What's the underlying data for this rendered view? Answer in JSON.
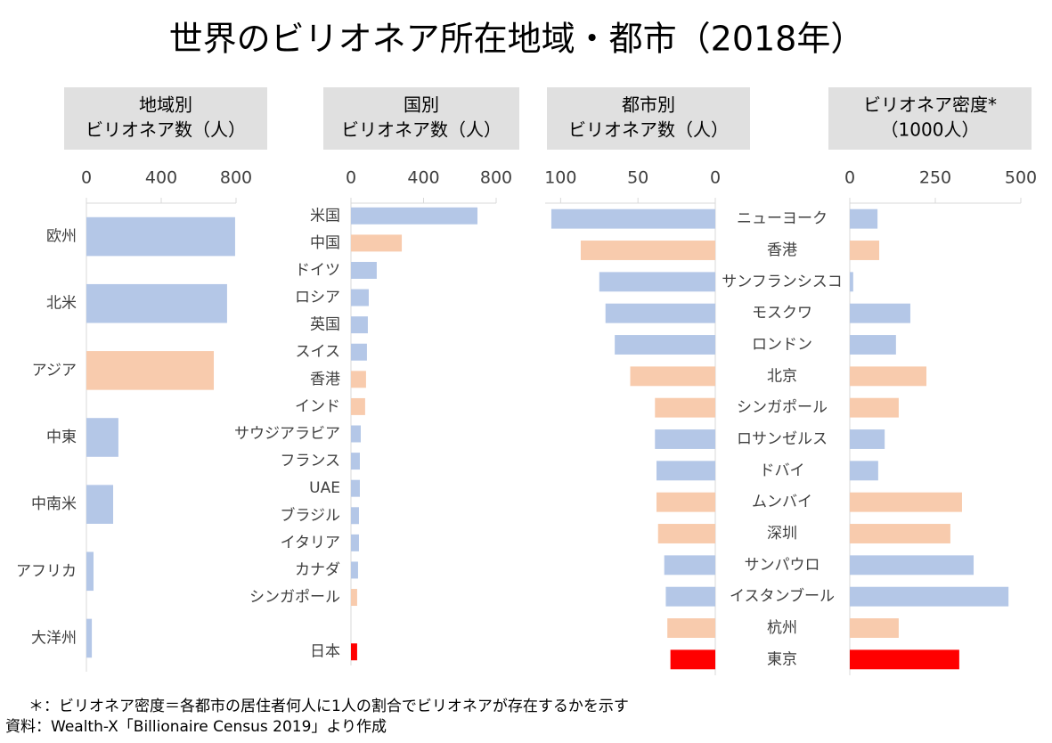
{
  "title": "世界のビリオネア所在地域・都市（2018年）",
  "chart_data": [
    {
      "type": "hbar",
      "title": [
        "地域別",
        "ビリオネア数（人）"
      ],
      "categories": [
        "欧州",
        "北米",
        "アジア",
        "中東",
        "中南米",
        "アフリカ",
        "大洋州"
      ],
      "values": [
        795,
        752,
        681,
        171,
        143,
        38,
        29
      ],
      "colors": [
        "#b4c7e7",
        "#b4c7e7",
        "#f8cbad",
        "#b4c7e7",
        "#b4c7e7",
        "#b4c7e7",
        "#b4c7e7"
      ],
      "xlim": [
        0,
        800
      ],
      "xticks": [
        0,
        400,
        800
      ]
    },
    {
      "type": "hbar",
      "title": [
        "国別",
        "ビリオネア数（人）"
      ],
      "categories": [
        "米国",
        "中国",
        "ドイツ",
        "ロシア",
        "英国",
        "スイス",
        "香港",
        "インド",
        "サウジアラビア",
        "フランス",
        "UAE",
        "ブラジル",
        "イタリア",
        "カナダ",
        "シンガポール",
        null,
        "日本"
      ],
      "values": [
        697,
        280,
        142,
        98,
        93,
        88,
        83,
        78,
        54,
        49,
        49,
        44,
        44,
        39,
        34,
        null,
        34
      ],
      "colors": [
        "#b4c7e7",
        "#f8cbad",
        "#b4c7e7",
        "#b4c7e7",
        "#b4c7e7",
        "#b4c7e7",
        "#f8cbad",
        "#f8cbad",
        "#b4c7e7",
        "#b4c7e7",
        "#b4c7e7",
        "#b4c7e7",
        "#b4c7e7",
        "#b4c7e7",
        "#f8cbad",
        null,
        "#ff0000"
      ],
      "xlim": [
        0,
        800
      ],
      "xticks": [
        0,
        400,
        800
      ]
    },
    {
      "type": "hbar",
      "title": [
        "都市別",
        "ビリオネア数（人）"
      ],
      "categories": [
        "ニューヨーク",
        "香港",
        "サンフランシスコ",
        "モスクワ",
        "ロンドン",
        "北京",
        "シンガポール",
        "ロサンゼルス",
        "ドバイ",
        "ムンバイ",
        "深圳",
        "サンパウロ",
        "イスタンブール",
        "杭州",
        "東京"
      ],
      "values": [
        106,
        87,
        75,
        71,
        65,
        55,
        39,
        39,
        38,
        38,
        37,
        33,
        32,
        31,
        29
      ],
      "colors": [
        "#b4c7e7",
        "#f8cbad",
        "#b4c7e7",
        "#b4c7e7",
        "#b4c7e7",
        "#f8cbad",
        "#f8cbad",
        "#b4c7e7",
        "#b4c7e7",
        "#f8cbad",
        "#f8cbad",
        "#b4c7e7",
        "#b4c7e7",
        "#f8cbad",
        "#ff0000"
      ],
      "xlim": [
        110,
        0
      ],
      "xticks": [
        100,
        50,
        0
      ]
    },
    {
      "type": "hbar",
      "title": [
        "ビリオネア密度*",
        "（1000人）"
      ],
      "values": [
        81,
        86,
        10,
        177,
        135,
        224,
        143,
        102,
        83,
        328,
        294,
        362,
        464,
        143,
        320
      ],
      "colors": [
        "#b4c7e7",
        "#f8cbad",
        "#b4c7e7",
        "#b4c7e7",
        "#b4c7e7",
        "#f8cbad",
        "#f8cbad",
        "#b4c7e7",
        "#b4c7e7",
        "#f8cbad",
        "#f8cbad",
        "#b4c7e7",
        "#b4c7e7",
        "#f8cbad",
        "#ff0000"
      ],
      "xlim": [
        0,
        500
      ],
      "xticks": [
        0,
        250,
        500
      ]
    }
  ],
  "notes": [
    "＊：ビリオネア密度＝各都市の居住者何人に1人の割合でビリオネアが存在するかを示す",
    "資料：Wealth-X「Billionaire Census 2019」より作成"
  ]
}
